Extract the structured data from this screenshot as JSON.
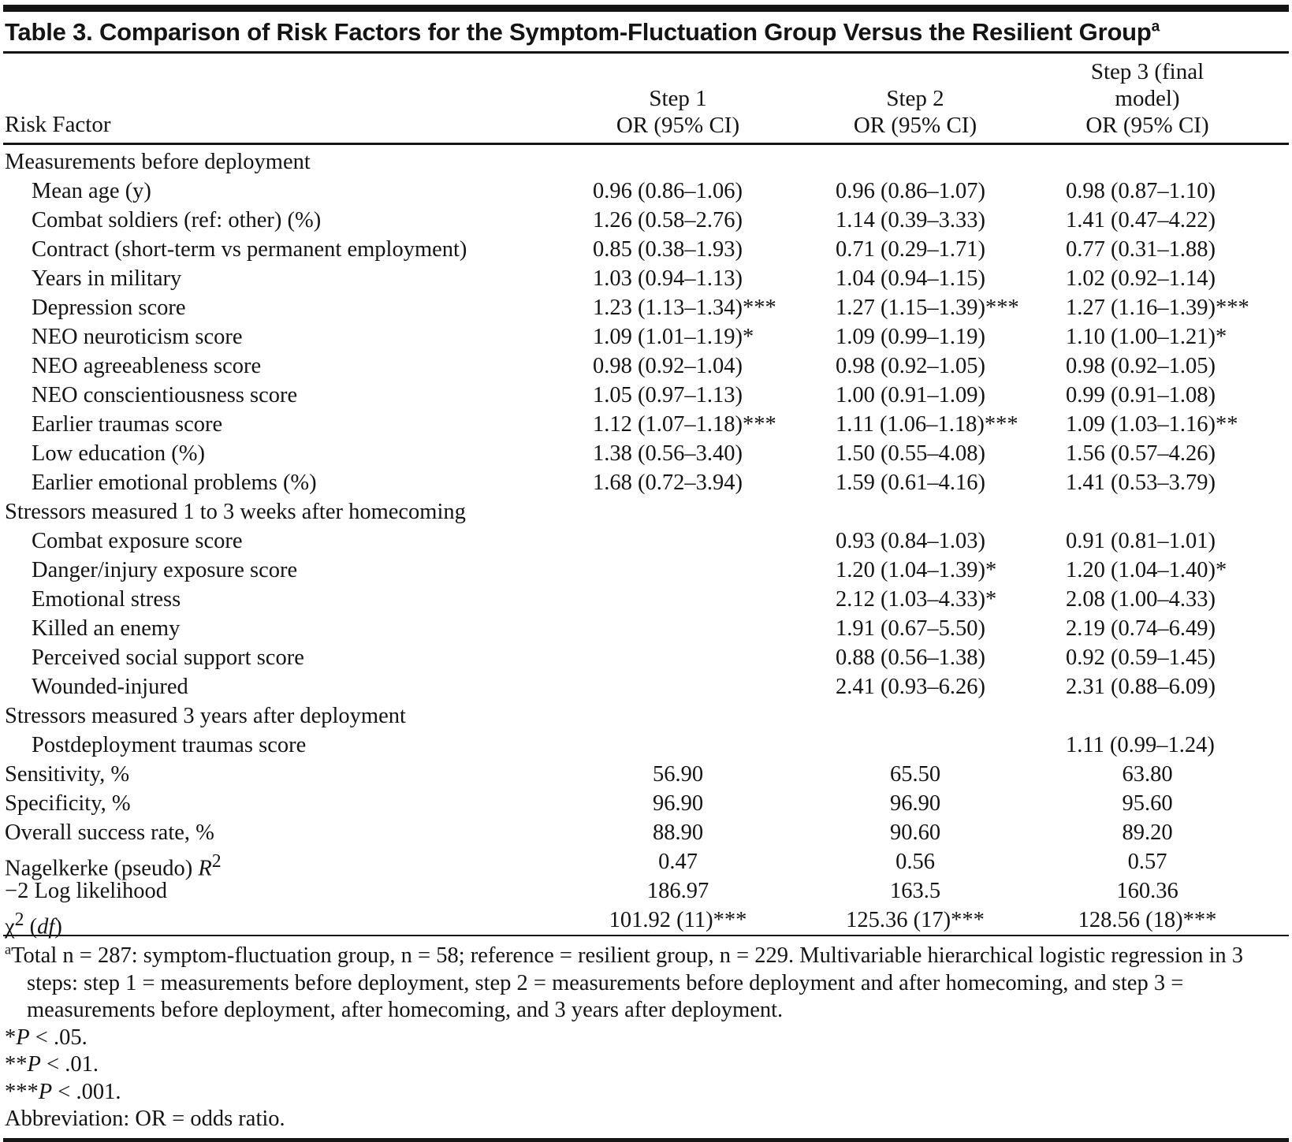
{
  "title": {
    "text": "Table 3. Comparison of Risk Factors for the Symptom-Fluctuation Group Versus the Resilient Group",
    "superscript": "a"
  },
  "header": {
    "row_label": "Risk Factor",
    "columns": [
      {
        "line1": "Step 1",
        "line2": "OR (95% CI)"
      },
      {
        "line1": "Step 2",
        "line2": "OR (95% CI)"
      },
      {
        "line1": "Step 3 (final model)",
        "line2": "OR (95% CI)"
      }
    ]
  },
  "table": {
    "rows": [
      {
        "type": "section",
        "label": "Measurements before deployment",
        "values": [
          "",
          "",
          ""
        ]
      },
      {
        "type": "item",
        "label": "Mean age (y)",
        "values": [
          "0.96 (0.86–1.06)",
          "0.96 (0.86–1.07)",
          "0.98 (0.87–1.10)"
        ]
      },
      {
        "type": "item",
        "label": "Combat soldiers (ref: other) (%)",
        "values": [
          "1.26 (0.58–2.76)",
          "1.14 (0.39–3.33)",
          "1.41 (0.47–4.22)"
        ]
      },
      {
        "type": "item",
        "label": "Contract (short-term vs permanent employment)",
        "values": [
          "0.85 (0.38–1.93)",
          "0.71 (0.29–1.71)",
          "0.77 (0.31–1.88)"
        ]
      },
      {
        "type": "item",
        "label": "Years in military",
        "values": [
          "1.03 (0.94–1.13)",
          "1.04 (0.94–1.15)",
          "1.02 (0.92–1.14)"
        ]
      },
      {
        "type": "item",
        "label": "Depression score",
        "values": [
          "1.23 (1.13–1.34)***",
          "1.27 (1.15–1.39)***",
          "1.27 (1.16–1.39)***"
        ]
      },
      {
        "type": "item",
        "label": "NEO neuroticism score",
        "values": [
          "1.09 (1.01–1.19)*",
          "1.09 (0.99–1.19)",
          "1.10 (1.00–1.21)*"
        ]
      },
      {
        "type": "item",
        "label": "NEO agreeableness score",
        "values": [
          "0.98 (0.92–1.04)",
          "0.98 (0.92–1.05)",
          "0.98 (0.92–1.05)"
        ]
      },
      {
        "type": "item",
        "label": "NEO conscientiousness score",
        "values": [
          "1.05 (0.97–1.13)",
          "1.00 (0.91–1.09)",
          "0.99 (0.91–1.08)"
        ]
      },
      {
        "type": "item",
        "label": "Earlier traumas score",
        "values": [
          "1.12 (1.07–1.18)***",
          "1.11 (1.06–1.18)***",
          "1.09 (1.03–1.16)**"
        ]
      },
      {
        "type": "item",
        "label": "Low education (%)",
        "values": [
          "1.38 (0.56–3.40)",
          "1.50 (0.55–4.08)",
          "1.56 (0.57–4.26)"
        ]
      },
      {
        "type": "item",
        "label": "Earlier emotional problems (%)",
        "values": [
          "1.68 (0.72–3.94)",
          "1.59 (0.61–4.16)",
          "1.41 (0.53–3.79)"
        ]
      },
      {
        "type": "section",
        "label": "Stressors measured 1 to 3 weeks after homecoming",
        "values": [
          "",
          "",
          ""
        ]
      },
      {
        "type": "item",
        "label": "Combat exposure score",
        "values": [
          "",
          "0.93 (0.84–1.03)",
          "0.91 (0.81–1.01)"
        ]
      },
      {
        "type": "item",
        "label": "Danger/injury exposure score",
        "values": [
          "",
          "1.20 (1.04–1.39)*",
          "1.20 (1.04–1.40)*"
        ]
      },
      {
        "type": "item",
        "label": "Emotional stress",
        "values": [
          "",
          "2.12 (1.03–4.33)*",
          "2.08 (1.00–4.33)"
        ]
      },
      {
        "type": "item",
        "label": "Killed an enemy",
        "values": [
          "",
          "1.91 (0.67–5.50)",
          "2.19 (0.74–6.49)"
        ]
      },
      {
        "type": "item",
        "label": "Perceived social support score",
        "values": [
          "",
          "0.88 (0.56–1.38)",
          "0.92 (0.59–1.45)"
        ]
      },
      {
        "type": "item",
        "label": "Wounded-injured",
        "values": [
          "",
          "2.41 (0.93–6.26)",
          "2.31 (0.88–6.09)"
        ]
      },
      {
        "type": "section",
        "label": "Stressors measured 3 years after deployment",
        "values": [
          "",
          "",
          ""
        ]
      },
      {
        "type": "item",
        "label": "Postdeployment traumas score",
        "values": [
          "",
          "",
          "1.11 (0.99–1.24)"
        ]
      },
      {
        "type": "summary",
        "label": "Sensitivity, %",
        "values": [
          "56.90",
          "65.50",
          "63.80"
        ]
      },
      {
        "type": "summary",
        "label": "Specificity, %",
        "values": [
          "96.90",
          "96.90",
          "95.60"
        ]
      },
      {
        "type": "summary",
        "label": "Overall success rate, %",
        "values": [
          "88.90",
          "90.60",
          "89.20"
        ]
      },
      {
        "type": "summary",
        "label": "Nagelkerke (pseudo) {i}R{/i}{sup}2{/sup}",
        "values": [
          "0.47",
          "0.56",
          "0.57"
        ]
      },
      {
        "type": "summary",
        "label": "−2 Log likelihood",
        "values": [
          "186.97",
          "163.5",
          "160.36"
        ]
      },
      {
        "type": "summary",
        "label": "χ{sup}2{/sup} ({i}df{/i})",
        "values": [
          "101.92 (11)***",
          "125.36 (17)***",
          "128.56 (18)***"
        ]
      }
    ]
  },
  "footnotes": {
    "a_marker": "a",
    "a_text": "Total n = 287: symptom-fluctuation group, n = 58; reference = resilient group, n = 229. Multivariable hierarchical logistic regression in 3 steps: step 1 = measurements before deployment, step 2 = measurements before deployment and after homecoming, and step 3 = measurements before deployment, after homecoming, and 3 years after deployment.",
    "sig1": "*{i}P{/i} < .05.",
    "sig2": "**{i}P{/i} < .01.",
    "sig3": "***{i}P{/i} < .001.",
    "abbreviation": "Abbreviation: OR = odds ratio."
  }
}
